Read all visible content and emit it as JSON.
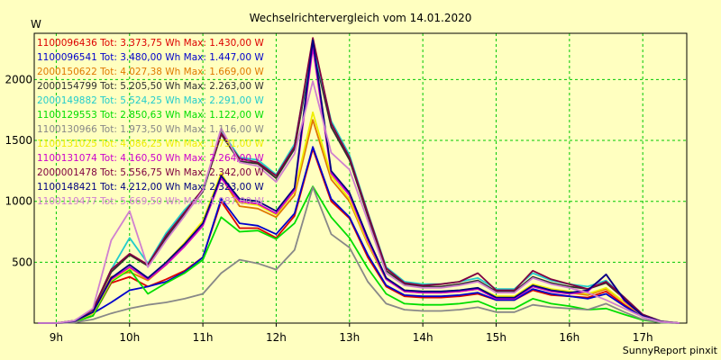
{
  "chart_data": {
    "type": "line",
    "title": "Wechselrichtervergleich vom 14.01.2020",
    "ylabel": "W",
    "footer": "SunnyReport pinxit",
    "ylim": [
      0,
      2380
    ],
    "xlim_hours": [
      8.7,
      17.6
    ],
    "grid": true,
    "legend_position": "top-left inside plot",
    "x_ticks": [
      {
        "label": "9h",
        "hour": 9
      },
      {
        "label": "10h",
        "hour": 10
      },
      {
        "label": "11h",
        "hour": 11
      },
      {
        "label": "12h",
        "hour": 12
      },
      {
        "label": "13h",
        "hour": 13
      },
      {
        "label": "14h",
        "hour": 14
      },
      {
        "label": "15h",
        "hour": 15
      },
      {
        "label": "16h",
        "hour": 16
      },
      {
        "label": "17h",
        "hour": 17
      }
    ],
    "y_ticks": [
      500,
      1000,
      1500,
      2000
    ],
    "x": [
      8.75,
      9.0,
      9.25,
      9.5,
      9.75,
      10.0,
      10.25,
      10.5,
      10.75,
      11.0,
      11.25,
      11.5,
      11.75,
      12.0,
      12.25,
      12.5,
      12.75,
      13.0,
      13.25,
      13.5,
      13.75,
      14.0,
      14.25,
      14.5,
      14.75,
      15.0,
      15.25,
      15.5,
      15.75,
      16.0,
      16.25,
      16.5,
      16.75,
      17.0,
      17.25,
      17.5
    ],
    "series": [
      {
        "name": "1100096436",
        "legend": "1100096436 Tot: 3.373,75 Wh Max: 1.430,00 W",
        "color": "#dd0000",
        "values": [
          0,
          0,
          10,
          60,
          330,
          380,
          300,
          360,
          430,
          540,
          1000,
          780,
          780,
          700,
          880,
          1430,
          1000,
          860,
          540,
          300,
          220,
          210,
          210,
          220,
          240,
          190,
          190,
          270,
          230,
          220,
          210,
          260,
          150,
          50,
          10,
          0
        ]
      },
      {
        "name": "1100096541",
        "legend": "1100096541 Tot: 3.480,00 Wh Max: 1.447,00 W",
        "color": "#0000cc",
        "values": [
          0,
          0,
          10,
          80,
          170,
          270,
          300,
          340,
          420,
          540,
          1020,
          820,
          800,
          730,
          900,
          1447,
          1020,
          870,
          560,
          310,
          230,
          220,
          220,
          230,
          250,
          190,
          190,
          280,
          240,
          220,
          200,
          240,
          140,
          50,
          10,
          0
        ]
      },
      {
        "name": "2000150622",
        "legend": "2000150622 Tot: 4.027,38 Wh Max: 1.669,00 W",
        "color": "#e07800",
        "values": [
          0,
          0,
          15,
          90,
          380,
          420,
          350,
          480,
          640,
          820,
          1200,
          960,
          940,
          870,
          1050,
          1669,
          1180,
          1000,
          650,
          360,
          260,
          250,
          250,
          260,
          280,
          210,
          210,
          310,
          270,
          250,
          230,
          280,
          170,
          60,
          12,
          0
        ]
      },
      {
        "name": "2000154799",
        "legend": "2000154799 Tot: 5.205,50 Wh Max: 2.263,00 W",
        "color": "#303030",
        "values": [
          0,
          0,
          20,
          110,
          420,
          560,
          470,
          700,
          890,
          1080,
          1550,
          1330,
          1310,
          1190,
          1430,
          2263,
          1610,
          1340,
          880,
          430,
          320,
          300,
          300,
          320,
          350,
          260,
          260,
          380,
          330,
          300,
          280,
          330,
          200,
          70,
          15,
          0
        ]
      },
      {
        "name": "2000149882",
        "legend": "2000149882 Tot: 5.524,25 Wh Max: 2.291,00 W",
        "color": "#22cccc",
        "values": [
          0,
          0,
          20,
          110,
          440,
          700,
          490,
          740,
          930,
          1090,
          1580,
          1360,
          1340,
          1220,
          1470,
          2291,
          1660,
          1380,
          910,
          460,
          340,
          320,
          320,
          340,
          370,
          280,
          280,
          410,
          350,
          320,
          300,
          350,
          210,
          70,
          15,
          0
        ]
      },
      {
        "name": "1100129553",
        "legend": "1100129553 Tot: 2.850,63 Wh Max: 1.122,00 W",
        "color": "#00dd00",
        "values": [
          0,
          0,
          10,
          60,
          340,
          440,
          240,
          330,
          410,
          520,
          870,
          750,
          760,
          690,
          820,
          1122,
          870,
          700,
          450,
          240,
          160,
          150,
          150,
          160,
          180,
          120,
          120,
          200,
          160,
          140,
          110,
          120,
          70,
          25,
          5,
          0
        ]
      },
      {
        "name": "1100130966",
        "legend": "1100130966 Tot: 1.973,50 Wh Max: 1.116,00 W",
        "color": "#888888",
        "values": [
          0,
          0,
          5,
          30,
          80,
          120,
          150,
          170,
          200,
          240,
          410,
          520,
          490,
          440,
          600,
          1116,
          730,
          620,
          340,
          160,
          110,
          100,
          100,
          110,
          130,
          90,
          90,
          150,
          130,
          120,
          110,
          160,
          90,
          30,
          5,
          0
        ]
      },
      {
        "name": "1100131025",
        "legend": "1100131025 Tot: 4.086,25 Wh Max: 1.731,00 W",
        "color": "#eeee00",
        "values": [
          0,
          0,
          15,
          80,
          350,
          450,
          360,
          500,
          660,
          840,
          1230,
          990,
          970,
          890,
          1080,
          1731,
          1210,
          1020,
          660,
          370,
          270,
          260,
          260,
          270,
          290,
          220,
          220,
          320,
          280,
          260,
          240,
          290,
          170,
          60,
          12,
          0
        ]
      },
      {
        "name": "1100131074",
        "legend": "1100131074 Tot: 4.160,50 Wh Max: 2.264,00 W",
        "color": "#cc00cc",
        "values": [
          0,
          0,
          15,
          90,
          360,
          460,
          360,
          480,
          630,
          800,
          1190,
          1000,
          980,
          900,
          1090,
          2264,
          1230,
          1050,
          680,
          360,
          260,
          250,
          250,
          260,
          280,
          200,
          200,
          300,
          260,
          240,
          260,
          400,
          180,
          60,
          12,
          0
        ]
      },
      {
        "name": "2000001478",
        "legend": "2000001478 Tot: 5.556,75 Wh Max: 2.342,00 W",
        "color": "#800040",
        "values": [
          0,
          0,
          20,
          110,
          440,
          570,
          480,
          720,
          910,
          1100,
          1560,
          1350,
          1320,
          1210,
          1450,
          2342,
          1640,
          1360,
          900,
          450,
          330,
          310,
          320,
          340,
          410,
          270,
          270,
          430,
          360,
          320,
          280,
          340,
          210,
          70,
          15,
          0
        ]
      },
      {
        "name": "1100148421",
        "legend": "1100148421 Tot: 4.212,00 Wh Max: 2.323,00 W",
        "color": "#000080",
        "values": [
          0,
          0,
          15,
          90,
          370,
          480,
          370,
          500,
          650,
          820,
          1210,
          1020,
          1000,
          920,
          1110,
          2323,
          1250,
          1070,
          700,
          370,
          270,
          260,
          260,
          270,
          290,
          210,
          210,
          310,
          270,
          250,
          270,
          400,
          190,
          60,
          12,
          0
        ]
      },
      {
        "name": "1100119477",
        "legend": "1100119477 Tot: 5.669,50 Wh Max: 1.987,00 W",
        "color": "#d080d0",
        "values": [
          0,
          0,
          20,
          120,
          680,
          920,
          460,
          680,
          880,
          1090,
          1600,
          1320,
          1290,
          1160,
          1390,
          1987,
          1400,
          1260,
          840,
          410,
          310,
          290,
          290,
          310,
          340,
          250,
          250,
          370,
          320,
          290,
          250,
          190,
          120,
          50,
          10,
          0
        ]
      }
    ]
  }
}
